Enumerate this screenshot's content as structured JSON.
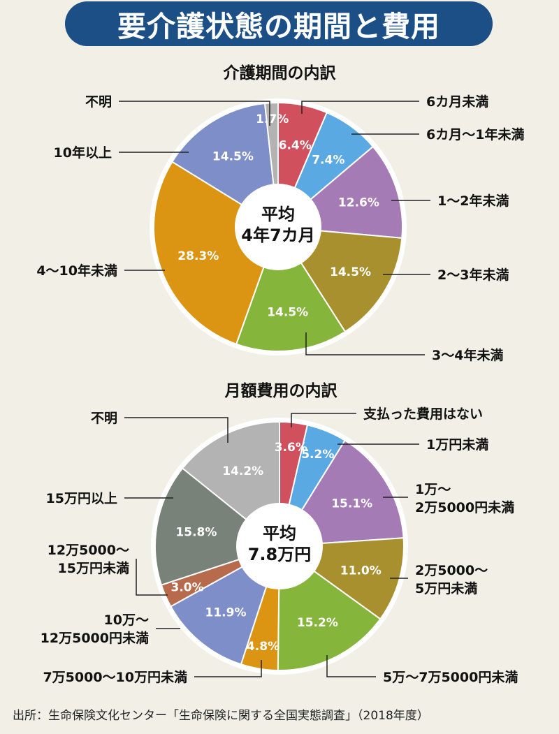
{
  "header": {
    "title": "要介護状態の期間と費用"
  },
  "footer": {
    "source": "出所：生命保険文化センター「生命保険に関する全国実態調査」（2018年度）"
  },
  "chart_data": [
    {
      "type": "pie",
      "title": "介護期間の内訳",
      "center_label": [
        "平均",
        "4年7カ月"
      ],
      "slices": [
        {
          "label": "6カ月未満",
          "value": 6.4,
          "display": "6.4%",
          "color": "#d1505e"
        },
        {
          "label": "6カ月～1年未満",
          "value": 7.4,
          "display": "7.4%",
          "color": "#5aa9e2"
        },
        {
          "label": "1～2年未満",
          "value": 12.6,
          "display": "12.6%",
          "color": "#a57bb6"
        },
        {
          "label": "2～3年未満",
          "value": 14.5,
          "display": "14.5%",
          "color": "#a8902f"
        },
        {
          "label": "3～4年未満",
          "value": 14.5,
          "display": "14.5%",
          "color": "#86b53b"
        },
        {
          "label": "4～10年未満",
          "value": 28.3,
          "display": "28.3%",
          "color": "#db9512"
        },
        {
          "label": "10年以上",
          "value": 14.5,
          "display": "14.5%",
          "color": "#7e8ec9"
        },
        {
          "label": "不明",
          "value": 1.7,
          "display": "1.7%",
          "color": "#b3b3b3"
        }
      ]
    },
    {
      "type": "pie",
      "title": "月額費用の内訳",
      "center_label": [
        "平均",
        "7.8万円"
      ],
      "slices": [
        {
          "label": "支払った費用はない",
          "value": 3.6,
          "display": "3.6%",
          "color": "#d1505e"
        },
        {
          "label": "1万円未満",
          "value": 5.2,
          "display": "5.2%",
          "color": "#5aa9e2"
        },
        {
          "label": "1万～\n2万5000円未満",
          "value": 15.1,
          "display": "15.1%",
          "color": "#a57bb6"
        },
        {
          "label": "2万5000～\n5万円未満",
          "value": 11.0,
          "display": "11.0%",
          "color": "#a8902f"
        },
        {
          "label": "5万～7万5000円未満",
          "value": 15.2,
          "display": "15.2%",
          "color": "#86b53b"
        },
        {
          "label": "7万5000～10万円未満",
          "value": 4.8,
          "display": "4.8%",
          "color": "#db9512"
        },
        {
          "label": "10万～\n12万5000円未満",
          "value": 11.9,
          "display": "11.9%",
          "color": "#7e8ec9"
        },
        {
          "label": "12万5000～\n15万円未満",
          "value": 3.0,
          "display": "3.0%",
          "color": "#b86a4d"
        },
        {
          "label": "15万円以上",
          "value": 15.8,
          "display": "15.8%",
          "color": "#798279"
        },
        {
          "label": "不明",
          "value": 14.2,
          "display": "14.2%",
          "color": "#b3b3b3"
        }
      ]
    }
  ]
}
